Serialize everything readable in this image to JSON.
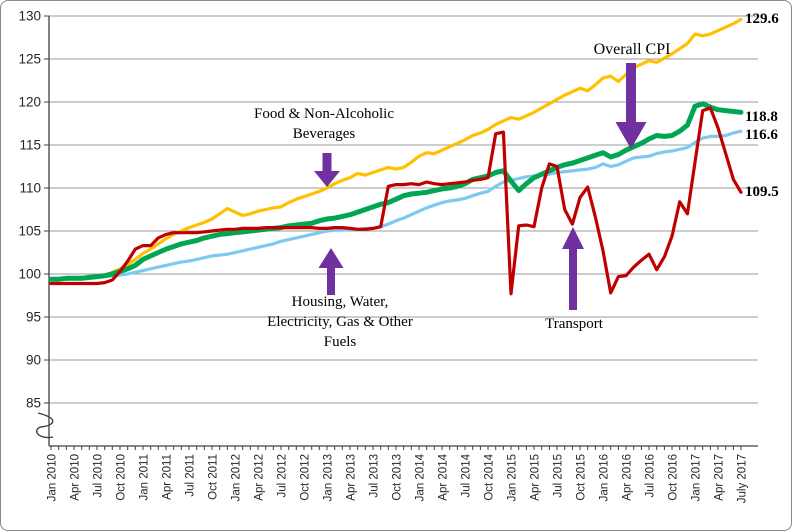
{
  "figure": {
    "title": "",
    "type_note": "line chart of CPI indices, Jan 2010 - July 2017, y-axis break below 85"
  },
  "chart_data": {
    "type": "line",
    "title": "",
    "xlabel": "",
    "ylabel": "",
    "months": 91,
    "months_per_tick": 3,
    "x_tick_labels": [
      "Jan 2010",
      "Apr 2010",
      "Jul 2010",
      "Oct 2010",
      "Jan 2011",
      "Apr 2011",
      "Jul 2011",
      "Oct 2011",
      "Jan 2012",
      "Apr 2012",
      "Jul 2012",
      "Oct 2012",
      "Jan 2013",
      "Apr 2013",
      "Jul 2013",
      "Oct 2013",
      "Jan 2014",
      "Apr 2014",
      "Jul 2014",
      "Oct 2014",
      "Jan 2015",
      "Apr 2015",
      "Jul 2015",
      "Oct 2015",
      "Jan 2016",
      "Apr 2016",
      "Jul 2016",
      "Oct 2016",
      "Jan 2017",
      "Apr 2017",
      "July 2017"
    ],
    "y_ticks": [
      85,
      90,
      95,
      100,
      105,
      110,
      115,
      120,
      125,
      130
    ],
    "ylim": [
      85,
      130
    ],
    "axis_break": true,
    "grid": true,
    "legend_position": "inline-annotations",
    "colors": {
      "grid": "#9b9b9b",
      "axis": "#404040",
      "tick_text": "#262626",
      "accent": "#7030A0"
    },
    "series": [
      {
        "id": "food-non-alcoholic-beverages",
        "name": "Food & Non-Alcoholic Beverages",
        "color": "#FFC000",
        "width": 3.2,
        "end_label": "129.6",
        "values": [
          99.4,
          99.4,
          99.4,
          99.5,
          99.5,
          99.5,
          99.6,
          99.8,
          100.2,
          100.6,
          101.1,
          101.7,
          102.4,
          102.9,
          103.5,
          104.1,
          104.6,
          105.0,
          105.4,
          105.7,
          106.0,
          106.4,
          107.0,
          107.6,
          107.2,
          106.8,
          107.0,
          107.3,
          107.5,
          107.7,
          107.8,
          108.3,
          108.7,
          109.0,
          109.3,
          109.6,
          110.0,
          110.5,
          110.9,
          111.2,
          111.7,
          111.5,
          111.8,
          112.1,
          112.4,
          112.2,
          112.4,
          113.0,
          113.7,
          114.1,
          114.0,
          114.4,
          114.8,
          115.2,
          115.6,
          116.1,
          116.4,
          116.8,
          117.4,
          117.8,
          118.2,
          118.0,
          118.4,
          118.8,
          119.3,
          119.8,
          120.3,
          120.8,
          121.2,
          121.6,
          121.3,
          122.0,
          122.8,
          123.0,
          122.4,
          123.2,
          124.0,
          124.4,
          124.8,
          124.6,
          125.1,
          125.6,
          126.2,
          126.8,
          127.9,
          127.7,
          127.9,
          128.3,
          128.7,
          129.1,
          129.6
        ]
      },
      {
        "id": "housing-water-electricity-gas-other-fuels",
        "name": "Housing, Water, Electricity, Gas & Other Fuels",
        "color": "#7EC9F0",
        "width": 3.2,
        "end_label": "116.6",
        "values": [
          99.4,
          99.4,
          99.4,
          99.5,
          99.5,
          99.6,
          99.6,
          99.7,
          99.8,
          99.9,
          100.0,
          100.2,
          100.4,
          100.6,
          100.8,
          101.0,
          101.2,
          101.4,
          101.5,
          101.7,
          101.9,
          102.1,
          102.2,
          102.3,
          102.5,
          102.7,
          102.9,
          103.1,
          103.3,
          103.5,
          103.8,
          104.0,
          104.2,
          104.4,
          104.6,
          104.8,
          105.0,
          105.1,
          105.1,
          105.2,
          105.2,
          105.3,
          105.3,
          105.5,
          105.8,
          106.2,
          106.5,
          106.9,
          107.3,
          107.7,
          108.0,
          108.3,
          108.5,
          108.6,
          108.8,
          109.1,
          109.4,
          109.6,
          110.2,
          110.7,
          110.9,
          111.1,
          111.3,
          111.4,
          111.5,
          111.6,
          111.8,
          111.9,
          112.0,
          112.1,
          112.2,
          112.4,
          112.8,
          112.5,
          112.7,
          113.1,
          113.5,
          113.6,
          113.7,
          114.0,
          114.2,
          114.3,
          114.5,
          114.7,
          115.3,
          115.8,
          116.0,
          116.0,
          116.1,
          116.4,
          116.6
        ]
      },
      {
        "id": "overall-cpi",
        "name": "Overall CPI",
        "color": "#00A651",
        "width": 5,
        "end_label": "118.8",
        "values": [
          99.4,
          99.4,
          99.5,
          99.5,
          99.5,
          99.6,
          99.7,
          99.8,
          100.0,
          100.3,
          100.6,
          101.0,
          101.7,
          102.1,
          102.5,
          102.9,
          103.2,
          103.5,
          103.7,
          103.9,
          104.2,
          104.4,
          104.6,
          104.7,
          104.8,
          104.9,
          105.0,
          105.1,
          105.2,
          105.3,
          105.4,
          105.6,
          105.7,
          105.8,
          105.9,
          106.2,
          106.4,
          106.5,
          106.7,
          106.9,
          107.2,
          107.5,
          107.8,
          108.1,
          108.3,
          108.7,
          109.1,
          109.3,
          109.4,
          109.5,
          109.7,
          109.9,
          110.0,
          110.2,
          110.5,
          111.0,
          111.2,
          111.4,
          111.8,
          112.0,
          110.8,
          109.7,
          110.5,
          111.2,
          111.6,
          112.0,
          112.4,
          112.7,
          112.9,
          113.2,
          113.5,
          113.8,
          114.1,
          113.6,
          113.9,
          114.4,
          114.8,
          115.2,
          115.7,
          116.1,
          116.0,
          116.1,
          116.6,
          117.3,
          119.5,
          119.8,
          119.4,
          119.1,
          119.0,
          118.9,
          118.8
        ]
      },
      {
        "id": "transport",
        "name": "Transport",
        "color": "#C00000",
        "width": 3.2,
        "end_label": "109.5",
        "values": [
          98.9,
          98.9,
          98.9,
          98.9,
          98.9,
          98.9,
          98.9,
          99.0,
          99.3,
          100.3,
          101.5,
          102.9,
          103.3,
          103.3,
          104.2,
          104.6,
          104.8,
          104.8,
          104.8,
          104.8,
          104.9,
          105.0,
          105.1,
          105.2,
          105.2,
          105.3,
          105.3,
          105.3,
          105.4,
          105.4,
          105.4,
          105.4,
          105.4,
          105.4,
          105.4,
          105.3,
          105.3,
          105.4,
          105.4,
          105.3,
          105.2,
          105.2,
          105.3,
          105.5,
          110.2,
          110.4,
          110.4,
          110.5,
          110.4,
          110.7,
          110.5,
          110.4,
          110.5,
          110.6,
          110.7,
          110.9,
          111.0,
          111.2,
          116.3,
          116.5,
          97.7,
          105.6,
          105.7,
          105.5,
          110.0,
          112.8,
          112.5,
          107.5,
          105.8,
          108.9,
          110.1,
          106.6,
          102.7,
          97.8,
          99.7,
          99.8,
          100.8,
          101.6,
          102.3,
          100.5,
          102.0,
          104.4,
          108.4,
          107.0,
          113.0,
          119.0,
          119.3,
          117.0,
          114.0,
          111.0,
          109.5
        ]
      }
    ],
    "annotations": [
      {
        "id": "food-beverages",
        "target_series": "Food & Non-Alcoholic Beverages",
        "lines": [
          "Food & Non-Alcoholic",
          "Beverages"
        ],
        "arrow": {
          "dir": "down",
          "cx": 326,
          "from": 152,
          "to": 186,
          "shaft": 9,
          "head_w": 26,
          "head_h": 16
        }
      },
      {
        "id": "overall-cpi",
        "target_series": "Overall CPI",
        "lines": [
          "Overall CPI"
        ],
        "arrow": {
          "dir": "down",
          "cx": 630,
          "from": 62,
          "to": 148,
          "shaft": 10,
          "head_w": 31,
          "head_h": 27
        }
      },
      {
        "id": "housing",
        "target_series": "Housing, Water, Electricity, Gas & Other Fuels",
        "lines": [
          "Housing, Water,",
          "Electricity, Gas & Other",
          "Fuels"
        ],
        "arrow": {
          "dir": "up",
          "cx": 330,
          "from": 294,
          "to": 247,
          "shaft": 8,
          "head_w": 25,
          "head_h": 20
        }
      },
      {
        "id": "transport",
        "target_series": "Transport",
        "lines": [
          "Transport"
        ],
        "arrow": {
          "dir": "up",
          "cx": 572,
          "from": 309,
          "to": 226,
          "shaft": 8,
          "head_w": 22,
          "head_h": 22
        }
      }
    ]
  }
}
